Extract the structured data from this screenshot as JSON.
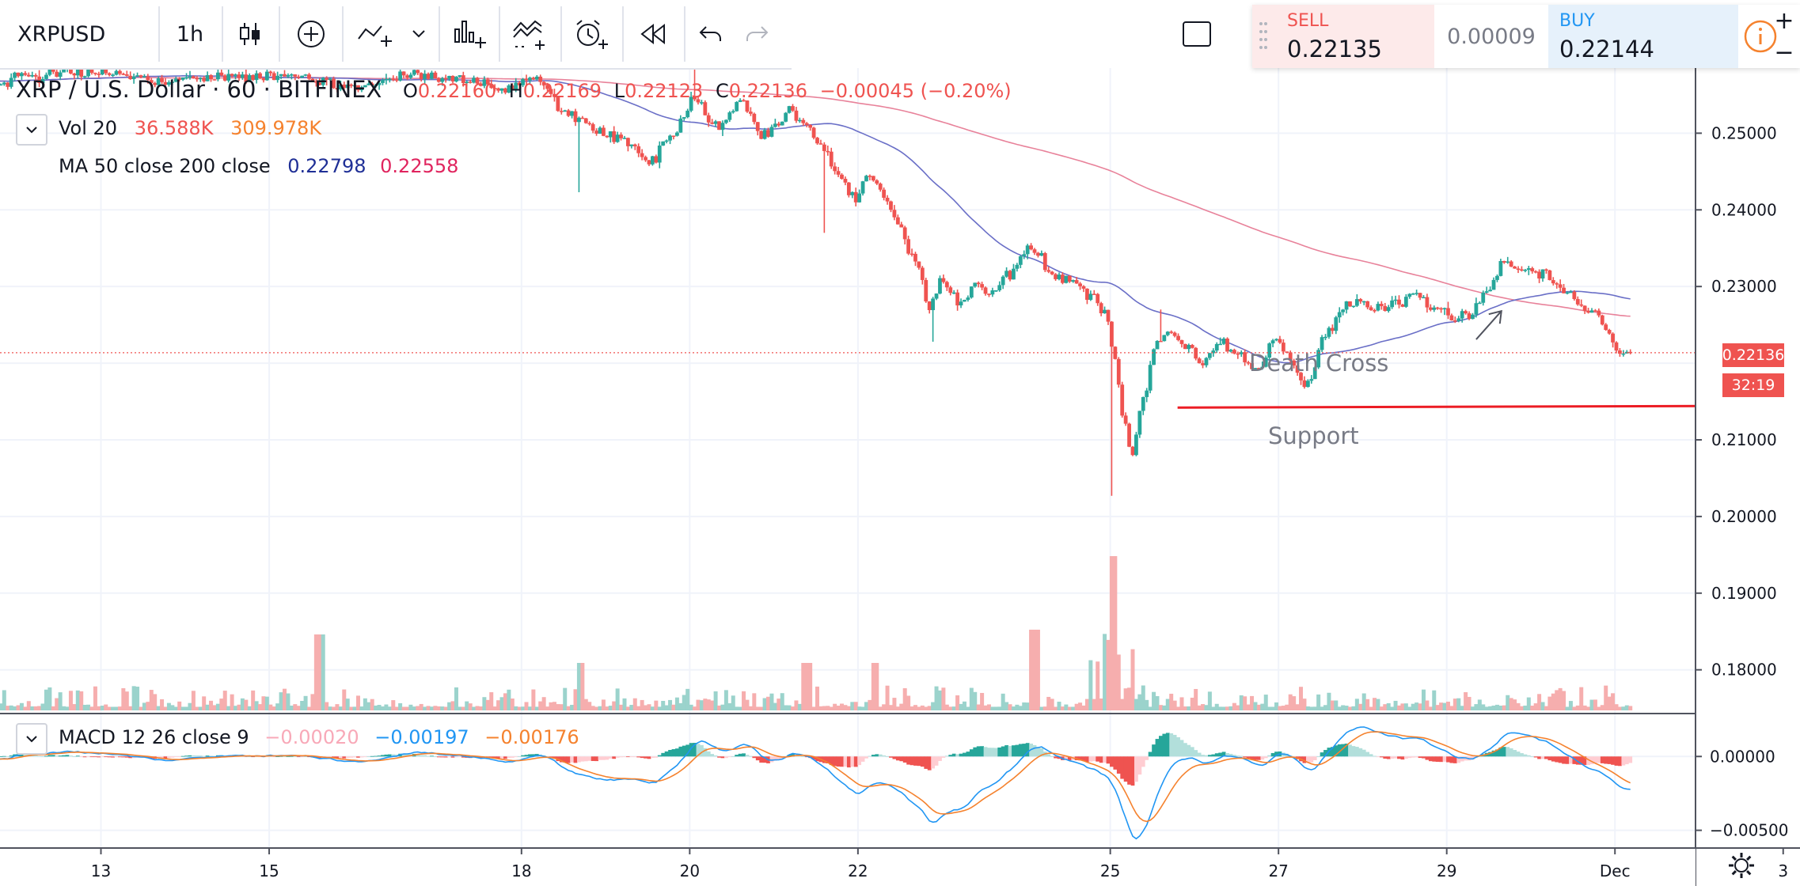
{
  "toolbar": {
    "symbol": "XRPUSD",
    "interval": "1h"
  },
  "legend": {
    "title": "XRP / U.S. Dollar · 60 · BITFINEX",
    "ohlc": {
      "o_label": "O",
      "o": "0.22160",
      "h_label": "H",
      "h": "0.22169",
      "l_label": "L",
      "l": "0.22123",
      "c_label": "C",
      "c": "0.22136",
      "change": "−0.00045 (−0.20%)"
    },
    "vol": {
      "label": "Vol 20",
      "v1": "36.588K",
      "v2": "309.978K"
    },
    "ma": {
      "label": "MA 50 close 200 close",
      "v1": "0.22798",
      "v2": "0.22558"
    },
    "macd": {
      "label": "MACD 12 26 close 9",
      "v1": "−0.00020",
      "v2": "−0.00197",
      "v3": "−0.00176"
    }
  },
  "trade": {
    "sell_label": "SELL",
    "sell_price": "0.22135",
    "spread": "0.00009",
    "buy_label": "BUY",
    "buy_price": "0.22144",
    "zoom_plus": "+",
    "zoom_minus": "−"
  },
  "price_tag": {
    "price": "0.22136",
    "countdown": "32:19"
  },
  "annotations": {
    "death_cross": "Death Cross",
    "support": "Support"
  },
  "colors": {
    "up": "#26a69a",
    "down": "#ef5350",
    "ma50": "#6a6fc7",
    "ma200": "#e8829a",
    "macd_line": "#2196f3",
    "signal_line": "#f5822e",
    "support_line": "#ec1c24"
  },
  "chart_data": {
    "type": "candlestick",
    "title": "XRP / U.S. Dollar · 60 · BITFINEX",
    "x_ticks": [
      "13",
      "15",
      "18",
      "20",
      "22",
      "25",
      "27",
      "29",
      "Dec",
      "3"
    ],
    "y_ticks": [
      "0.25000",
      "0.24000",
      "0.23000",
      "0.21000",
      "0.20000",
      "0.19000",
      "0.18000"
    ],
    "y_range": [
      0.1745,
      0.2585
    ],
    "macd_ticks": [
      "0.00000",
      "−0.00500"
    ],
    "macd_range": [
      -0.0062,
      0.0028
    ],
    "close_anchors": [
      [
        10.6,
        0.2575
      ],
      [
        11.5,
        0.2562
      ],
      [
        12.2,
        0.2575
      ],
      [
        13.0,
        0.258
      ],
      [
        13.6,
        0.2568
      ],
      [
        14.2,
        0.2572
      ],
      [
        14.8,
        0.2575
      ],
      [
        15.4,
        0.2575
      ],
      [
        16.0,
        0.256
      ],
      [
        16.6,
        0.2576
      ],
      [
        17.2,
        0.2572
      ],
      [
        17.8,
        0.256
      ],
      [
        18.2,
        0.2572
      ],
      [
        18.5,
        0.253
      ],
      [
        18.8,
        0.251
      ],
      [
        19.2,
        0.2495
      ],
      [
        19.5,
        0.246
      ],
      [
        19.8,
        0.25
      ],
      [
        20.05,
        0.2545
      ],
      [
        20.3,
        0.251
      ],
      [
        20.6,
        0.254
      ],
      [
        20.9,
        0.25
      ],
      [
        21.2,
        0.2525
      ],
      [
        21.4,
        0.251
      ],
      [
        21.6,
        0.2475
      ],
      [
        21.8,
        0.244
      ],
      [
        22.0,
        0.241
      ],
      [
        22.1,
        0.245
      ],
      [
        22.25,
        0.243
      ],
      [
        22.45,
        0.239
      ],
      [
        22.7,
        0.233
      ],
      [
        22.85,
        0.227
      ],
      [
        23.0,
        0.231
      ],
      [
        23.2,
        0.228
      ],
      [
        23.4,
        0.23
      ],
      [
        23.6,
        0.229
      ],
      [
        23.8,
        0.232
      ],
      [
        24.0,
        0.235
      ],
      [
        24.15,
        0.234
      ],
      [
        24.3,
        0.231
      ],
      [
        24.5,
        0.231
      ],
      [
        24.75,
        0.229
      ],
      [
        24.95,
        0.227
      ],
      [
        25.05,
        0.221
      ],
      [
        25.15,
        0.213
      ],
      [
        25.25,
        0.208
      ],
      [
        25.4,
        0.216
      ],
      [
        25.55,
        0.223
      ],
      [
        25.7,
        0.224
      ],
      [
        25.9,
        0.222
      ],
      [
        26.1,
        0.22
      ],
      [
        26.3,
        0.223
      ],
      [
        26.5,
        0.2215
      ],
      [
        26.75,
        0.219
      ],
      [
        26.95,
        0.223
      ],
      [
        27.1,
        0.221
      ],
      [
        27.35,
        0.217
      ],
      [
        27.55,
        0.223
      ],
      [
        27.75,
        0.227
      ],
      [
        27.95,
        0.228
      ],
      [
        28.2,
        0.227
      ],
      [
        28.45,
        0.228
      ],
      [
        28.65,
        0.229
      ],
      [
        28.85,
        0.227
      ],
      [
        29.05,
        0.226
      ],
      [
        29.25,
        0.2265
      ],
      [
        29.45,
        0.229
      ],
      [
        29.65,
        0.233
      ],
      [
        29.85,
        0.232
      ],
      [
        30.05,
        0.232
      ],
      [
        30.25,
        0.231
      ],
      [
        30.45,
        0.229
      ],
      [
        30.6,
        0.227
      ],
      [
        30.75,
        0.227
      ],
      [
        30.9,
        0.224
      ],
      [
        31.05,
        0.2215
      ],
      [
        31.2,
        0.2214
      ]
    ],
    "x_range": [
      11.8,
      33.2
    ],
    "annotations": [
      "Death Cross",
      "Support"
    ],
    "support_level": 0.2142,
    "current_price": 0.22136
  }
}
